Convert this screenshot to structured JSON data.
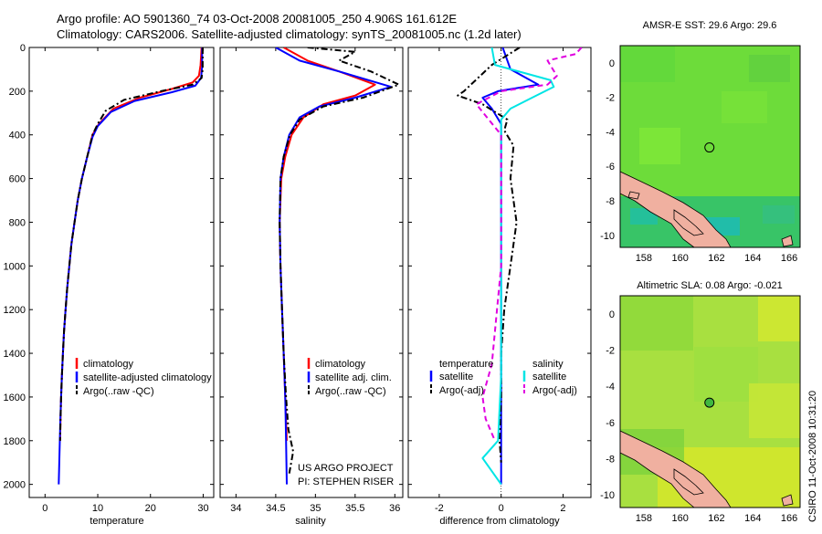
{
  "page_title_line1": "Argo profile: AO 5901360_74 03-Oct-2008 20081005_250 4.906S 161.612E",
  "page_title_line2": "Climatology: CARS2006. Satellite-adjusted climatology: synTS_20081005.nc (1.2d later)",
  "colors": {
    "climatology": "#ff0000",
    "satellite": "#0000ff",
    "argo": "#000000",
    "salinity_satellite": "#00e5e5",
    "salinity_argo": "#e000e0",
    "land": "#f0b0a0",
    "sst_field": "#6ddc3a",
    "sla_field": "#a8e040"
  },
  "chart_data": [
    {
      "type": "line",
      "panel": "temperature",
      "xlabel": "temperature",
      "xlim": [
        -3,
        32
      ],
      "ylim": [
        2060,
        0
      ],
      "y_reversed": true,
      "xticks": [
        0,
        10,
        20,
        30
      ],
      "yticks": [
        0,
        200,
        400,
        600,
        800,
        1000,
        1200,
        1400,
        1600,
        1800,
        2000
      ],
      "legend": [
        "climatology",
        "satellite-adjusted climatology",
        "Argo(..raw -QC)"
      ],
      "legend_location": "lower-right",
      "series": [
        {
          "name": "climatology",
          "color": "#ff0000",
          "style": "solid",
          "points": [
            [
              29.7,
              0
            ],
            [
              29.5,
              80
            ],
            [
              29.2,
              130
            ],
            [
              28,
              160
            ],
            [
              24,
              190
            ],
            [
              18,
              230
            ],
            [
              13,
              280
            ],
            [
              10.2,
              350
            ],
            [
              9,
              400
            ],
            [
              8,
              500
            ],
            [
              7,
              600
            ],
            [
              6.2,
              700
            ],
            [
              5.6,
              800
            ],
            [
              5,
              900
            ],
            [
              4.6,
              1000
            ],
            [
              4.2,
              1100
            ],
            [
              3.9,
              1200
            ],
            [
              3.6,
              1300
            ],
            [
              3.4,
              1400
            ],
            [
              3.2,
              1500
            ],
            [
              3.05,
              1600
            ],
            [
              2.95,
              1700
            ],
            [
              2.85,
              1800
            ]
          ]
        },
        {
          "name": "satellite-adjusted climatology",
          "color": "#0000ff",
          "style": "solid",
          "points": [
            [
              29.8,
              0
            ],
            [
              29.8,
              90
            ],
            [
              29.6,
              140
            ],
            [
              28.5,
              175
            ],
            [
              24,
              205
            ],
            [
              17,
              245
            ],
            [
              12.5,
              295
            ],
            [
              10,
              360
            ],
            [
              9,
              410
            ],
            [
              8,
              500
            ],
            [
              7,
              600
            ],
            [
              6.2,
              700
            ],
            [
              5.6,
              800
            ],
            [
              5,
              900
            ],
            [
              4.6,
              1000
            ],
            [
              4.2,
              1100
            ],
            [
              3.9,
              1200
            ],
            [
              3.6,
              1300
            ],
            [
              3.4,
              1400
            ],
            [
              3.2,
              1500
            ],
            [
              3.05,
              1600
            ],
            [
              2.9,
              1700
            ],
            [
              2.8,
              1800
            ],
            [
              2.7,
              1900
            ],
            [
              2.6,
              2000
            ]
          ]
        },
        {
          "name": "Argo(..raw -QC)",
          "color": "#000000",
          "style": "dashdot",
          "points": [
            [
              29.9,
              0
            ],
            [
              29.9,
              100
            ],
            [
              29.7,
              140
            ],
            [
              28,
              170
            ],
            [
              22,
              200
            ],
            [
              15,
              240
            ],
            [
              11.5,
              290
            ],
            [
              10,
              350
            ],
            [
              9,
              400
            ],
            [
              8,
              500
            ],
            [
              7,
              600
            ],
            [
              6.2,
              700
            ],
            [
              5.6,
              800
            ],
            [
              5,
              900
            ],
            [
              4.6,
              1000
            ],
            [
              4.2,
              1100
            ],
            [
              3.9,
              1200
            ],
            [
              3.6,
              1300
            ],
            [
              3.4,
              1400
            ],
            [
              3.2,
              1500
            ],
            [
              3.05,
              1600
            ],
            [
              2.95,
              1700
            ],
            [
              2.85,
              1800
            ]
          ]
        }
      ]
    },
    {
      "type": "line",
      "panel": "salinity",
      "xlabel": "salinity",
      "xlim": [
        33.8,
        36.1
      ],
      "ylim": [
        2060,
        0
      ],
      "y_reversed": true,
      "xticks": [
        34,
        34.5,
        35,
        35.5,
        36
      ],
      "legend": [
        "climatology",
        "satellite adj. clim.",
        "Argo(..raw -QC)"
      ],
      "legend_location": "lower-right",
      "annotation": [
        "US ARGO PROJECT",
        "PI: STEPHEN RISER"
      ],
      "series": [
        {
          "name": "climatology",
          "color": "#ff0000",
          "style": "solid",
          "points": [
            [
              34.6,
              0
            ],
            [
              34.9,
              60
            ],
            [
              35.3,
              110
            ],
            [
              35.75,
              170
            ],
            [
              35.5,
              220
            ],
            [
              35.1,
              260
            ],
            [
              34.85,
              320
            ],
            [
              34.7,
              400
            ],
            [
              34.62,
              500
            ],
            [
              34.57,
              600
            ],
            [
              34.55,
              800
            ],
            [
              34.56,
              1000
            ],
            [
              34.58,
              1200
            ],
            [
              34.6,
              1400
            ],
            [
              34.62,
              1600
            ],
            [
              34.64,
              1800
            ]
          ]
        },
        {
          "name": "satellite adj. clim.",
          "color": "#0000ff",
          "style": "solid",
          "points": [
            [
              34.5,
              0
            ],
            [
              34.8,
              60
            ],
            [
              35.3,
              110
            ],
            [
              35.95,
              180
            ],
            [
              35.5,
              230
            ],
            [
              35.05,
              270
            ],
            [
              34.8,
              320
            ],
            [
              34.67,
              400
            ],
            [
              34.6,
              500
            ],
            [
              34.56,
              600
            ],
            [
              34.55,
              800
            ],
            [
              34.56,
              1000
            ],
            [
              34.58,
              1200
            ],
            [
              34.6,
              1400
            ],
            [
              34.62,
              1600
            ],
            [
              34.63,
              1800
            ],
            [
              34.64,
              2000
            ]
          ]
        },
        {
          "name": "Argo(..raw -QC)",
          "color": "#000000",
          "style": "dashdot",
          "points": [
            [
              34.9,
              0
            ],
            [
              35.5,
              20
            ],
            [
              35.3,
              60
            ],
            [
              35.7,
              110
            ],
            [
              36.05,
              170
            ],
            [
              35.6,
              230
            ],
            [
              35.1,
              270
            ],
            [
              34.8,
              330
            ],
            [
              34.68,
              400
            ],
            [
              34.6,
              500
            ],
            [
              34.56,
              600
            ],
            [
              34.55,
              800
            ],
            [
              34.56,
              1000
            ],
            [
              34.58,
              1200
            ],
            [
              34.6,
              1400
            ],
            [
              34.63,
              1600
            ],
            [
              34.66,
              1750
            ],
            [
              34.72,
              1850
            ],
            [
              34.67,
              1950
            ]
          ]
        }
      ]
    },
    {
      "type": "line",
      "panel": "difference",
      "xlabel": "difference from climatology",
      "xlim": [
        -3,
        2.9
      ],
      "ylim": [
        2060,
        0
      ],
      "y_reversed": true,
      "xticks": [
        -2,
        0,
        2
      ],
      "legend": [
        "temperature",
        "satellite",
        "Argo(-adj)",
        "salinity",
        "satellite",
        "Argo(-adj)"
      ],
      "legend_location": "lower-center",
      "series": [
        {
          "name": "temperature satellite",
          "color": "#0000ff",
          "style": "solid",
          "points": [
            [
              0.05,
              0
            ],
            [
              0.3,
              100
            ],
            [
              1.2,
              170
            ],
            [
              -0.1,
              200
            ],
            [
              -0.6,
              230
            ],
            [
              -0.3,
              280
            ],
            [
              0,
              350
            ],
            [
              0,
              500
            ],
            [
              0,
              1000
            ],
            [
              0,
              1500
            ],
            [
              0,
              2000
            ]
          ]
        },
        {
          "name": "temperature Argo(-adj)",
          "color": "#000000",
          "style": "dashdot",
          "points": [
            [
              0.6,
              0
            ],
            [
              -0.3,
              80
            ],
            [
              -1.2,
              200
            ],
            [
              -1.4,
              220
            ],
            [
              -0.6,
              260
            ],
            [
              0.2,
              330
            ],
            [
              0.1,
              380
            ],
            [
              0.4,
              450
            ],
            [
              0.3,
              600
            ],
            [
              0.5,
              800
            ],
            [
              0.3,
              1000
            ],
            [
              0.1,
              1200
            ],
            [
              0,
              1400
            ],
            [
              0,
              1600
            ],
            [
              -0.05,
              1800
            ],
            [
              0,
              1900
            ]
          ]
        },
        {
          "name": "salinity satellite",
          "color": "#00e5e5",
          "style": "solid",
          "points": [
            [
              -0.3,
              0
            ],
            [
              -0.2,
              80
            ],
            [
              1.6,
              150
            ],
            [
              1.7,
              180
            ],
            [
              1,
              230
            ],
            [
              0.3,
              280
            ],
            [
              0,
              330
            ],
            [
              0,
              500
            ],
            [
              0,
              1000
            ],
            [
              0,
              1500
            ],
            [
              -0.1,
              1800
            ],
            [
              -0.6,
              1880
            ],
            [
              0,
              2000
            ]
          ]
        },
        {
          "name": "salinity Argo(-adj)",
          "color": "#e000e0",
          "style": "dashed",
          "points": [
            [
              2.6,
              0
            ],
            [
              2.4,
              30
            ],
            [
              1.5,
              60
            ],
            [
              1.8,
              130
            ],
            [
              1.5,
              170
            ],
            [
              0,
              200
            ],
            [
              -0.8,
              260
            ],
            [
              -0.4,
              330
            ],
            [
              0,
              400
            ],
            [
              0,
              1000
            ],
            [
              -0.3,
              1450
            ],
            [
              -0.6,
              1600
            ],
            [
              -0.5,
              1700
            ],
            [
              -0.2,
              1800
            ]
          ]
        }
      ]
    },
    {
      "type": "heatmap",
      "panel": "sst_map",
      "title": "AMSR-E SST: 29.6 Argo: 29.6",
      "xlim": [
        156.7,
        166.6
      ],
      "ylim": [
        -10.7,
        1.0
      ],
      "xticks": [
        158,
        160,
        162,
        164,
        166
      ],
      "yticks": [
        0,
        -2,
        -4,
        -6,
        -8,
        -10
      ],
      "marker": {
        "lon": 161.612,
        "lat": -4.906
      }
    },
    {
      "type": "heatmap",
      "panel": "sla_map",
      "title": "Altimetric SLA: 0.08 Argo: -0.021",
      "xlim": [
        156.7,
        166.6
      ],
      "ylim": [
        -10.7,
        1.0
      ],
      "xticks": [
        158,
        160,
        162,
        164,
        166
      ],
      "yticks": [
        0,
        -2,
        -4,
        -6,
        -8,
        -10
      ],
      "marker": {
        "lon": 161.612,
        "lat": -4.906
      }
    }
  ],
  "footer_vertical": "CSIRO 11-Oct-2008 10:31:20"
}
